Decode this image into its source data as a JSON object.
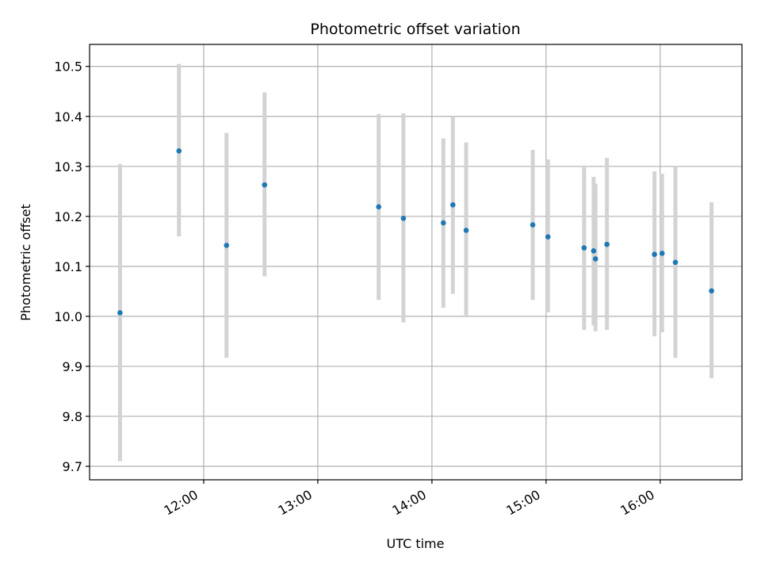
{
  "chart_data": {
    "type": "scatter",
    "title": "Photometric offset variation",
    "xlabel": "UTC time",
    "ylabel": "Photometric offset",
    "x_tick_labels": [
      "12:00",
      "13:00",
      "14:00",
      "15:00",
      "16:00"
    ],
    "x_ticks": [
      "12:00",
      "13:00",
      "14:00",
      "15:00",
      "16:00"
    ],
    "y_ticks": [
      9.7,
      9.8,
      9.9,
      10.0,
      10.1,
      10.2,
      10.3,
      10.4,
      10.5
    ],
    "y_tick_labels": [
      "9.7",
      "9.8",
      "9.9",
      "10.0",
      "10.1",
      "10.2",
      "10.3",
      "10.4",
      "10.5"
    ],
    "xlim": [
      "11:00",
      "16:43"
    ],
    "ylim": [
      9.673,
      10.544
    ],
    "grid": true,
    "colors": {
      "point": "#1f77b4",
      "errorbar": "#d3d3d3",
      "grid": "#b0b0b0"
    },
    "points": [
      {
        "x": "11:16",
        "y": 10.007,
        "low": 9.71,
        "high": 10.305
      },
      {
        "x": "11:47",
        "y": 10.331,
        "low": 10.16,
        "high": 10.505
      },
      {
        "x": "12:12",
        "y": 10.142,
        "low": 9.917,
        "high": 10.367
      },
      {
        "x": "12:32",
        "y": 10.263,
        "low": 10.08,
        "high": 10.448
      },
      {
        "x": "13:32",
        "y": 10.219,
        "low": 10.033,
        "high": 10.405
      },
      {
        "x": "13:45",
        "y": 10.196,
        "low": 9.988,
        "high": 10.406
      },
      {
        "x": "14:06",
        "y": 10.187,
        "low": 10.017,
        "high": 10.356
      },
      {
        "x": "14:11",
        "y": 10.223,
        "low": 10.045,
        "high": 10.4
      },
      {
        "x": "14:18",
        "y": 10.172,
        "low": 9.998,
        "high": 10.348
      },
      {
        "x": "14:53",
        "y": 10.183,
        "low": 10.033,
        "high": 10.333
      },
      {
        "x": "15:01",
        "y": 10.159,
        "low": 10.008,
        "high": 10.314
      },
      {
        "x": "15:20",
        "y": 10.137,
        "low": 9.973,
        "high": 10.302
      },
      {
        "x": "15:25",
        "y": 10.131,
        "low": 9.982,
        "high": 10.279
      },
      {
        "x": "15:26",
        "y": 10.115,
        "low": 9.97,
        "high": 10.265
      },
      {
        "x": "15:32",
        "y": 10.144,
        "low": 9.973,
        "high": 10.317
      },
      {
        "x": "15:57",
        "y": 10.124,
        "low": 9.96,
        "high": 10.29
      },
      {
        "x": "16:01",
        "y": 10.126,
        "low": 9.968,
        "high": 10.285
      },
      {
        "x": "16:08",
        "y": 10.108,
        "low": 9.917,
        "high": 10.3
      },
      {
        "x": "16:27",
        "y": 10.051,
        "low": 9.876,
        "high": 10.228
      }
    ]
  }
}
